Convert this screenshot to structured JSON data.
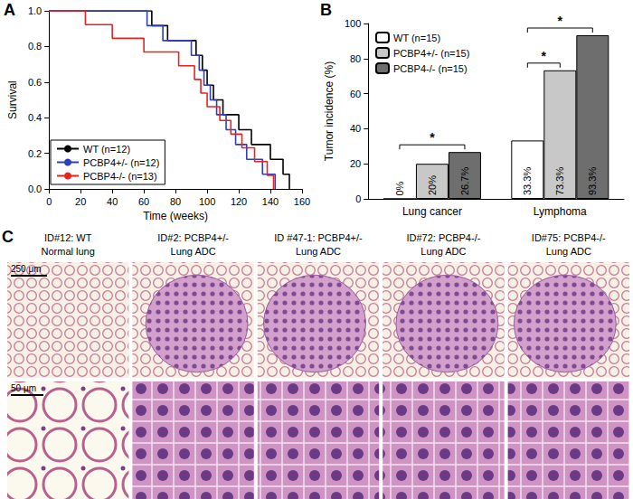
{
  "chart_data": [
    {
      "panel_label": "A",
      "type": "line",
      "line_style": "step",
      "x_label": "Time (weeks)",
      "y_label": "Survival",
      "xlim": [
        0,
        160
      ],
      "xticks": [
        0,
        20,
        40,
        60,
        80,
        100,
        120,
        140,
        160
      ],
      "ylim": [
        0,
        1
      ],
      "yticks": [
        {
          "value": 0,
          "label": "0.0"
        },
        {
          "value": 0.2,
          "label": "0.2"
        },
        {
          "value": 0.4,
          "label": "0.4"
        },
        {
          "value": 0.6,
          "label": "0.6"
        },
        {
          "value": 0.8,
          "label": "0.8"
        },
        {
          "value": 1,
          "label": "1.0"
        }
      ],
      "legend": "lower left",
      "series": [
        {
          "name": "WT (n=12)",
          "color": "#000000",
          "x": [
            0,
            65,
            75,
            93,
            97,
            100,
            104,
            110,
            120,
            128,
            140,
            148,
            152
          ],
          "values": [
            1,
            0.917,
            0.833,
            0.75,
            0.667,
            0.583,
            0.5,
            0.417,
            0.333,
            0.25,
            0.167,
            0.083,
            0
          ]
        },
        {
          "name": "PCBP4+/- (n=12)",
          "color": "#2e3fb8",
          "x": [
            0,
            62,
            72,
            90,
            95,
            98,
            102,
            106,
            112,
            118,
            125,
            135,
            143
          ],
          "values": [
            1,
            0.917,
            0.833,
            0.75,
            0.667,
            0.583,
            0.5,
            0.417,
            0.333,
            0.25,
            0.167,
            0.083,
            0
          ]
        },
        {
          "name": "PCBP4-/- (n=13)",
          "color": "#e8231f",
          "x": [
            0,
            23,
            40,
            60,
            82,
            92,
            96,
            100,
            108,
            115,
            122,
            130,
            138,
            142
          ],
          "values": [
            1,
            0.923,
            0.846,
            0.769,
            0.692,
            0.615,
            0.538,
            0.462,
            0.385,
            0.308,
            0.231,
            0.154,
            0.077,
            0
          ]
        }
      ]
    },
    {
      "panel_label": "B",
      "type": "bar",
      "y_label": "Tumor incidence (%)",
      "categories": [
        "Lung cancer",
        "Lymphoma"
      ],
      "ylim": [
        0,
        100
      ],
      "yticks": [
        0,
        20,
        40,
        60,
        80,
        100
      ],
      "legend": "upper left",
      "data_labels": true,
      "series": [
        {
          "name": "WT (n=15)",
          "color": "#ffffff",
          "values": [
            0,
            33.3
          ],
          "value_labels": [
            "0%",
            "33.3%"
          ]
        },
        {
          "name": "PCBP4+/- (n=15)",
          "color": "#c8c8c8",
          "values": [
            20,
            73.3
          ],
          "value_labels": [
            "20%",
            "73.3%"
          ]
        },
        {
          "name": "PCBP4-/- (n=15)",
          "color": "#6e6e6e",
          "values": [
            26.7,
            93.3
          ],
          "value_labels": [
            "26.7%",
            "93.3%"
          ]
        }
      ],
      "significance": [
        {
          "category": "Lung cancer",
          "from": "WT (n=15)",
          "to": "PCBP4-/- (n=15)",
          "label": "*"
        },
        {
          "category": "Lymphoma",
          "from": "WT (n=15)",
          "to": "PCBP4+/- (n=15)",
          "label": "*"
        },
        {
          "category": "Lymphoma",
          "from": "WT (n=15)",
          "to": "PCBP4-/- (n=15)",
          "label": "*"
        }
      ]
    }
  ],
  "panel_c": {
    "panel_label": "C",
    "scale_bars": {
      "top": "250 μm",
      "bottom": "50 μm"
    },
    "columns": [
      {
        "id": "ID#12: WT",
        "label": "Normal lung"
      },
      {
        "id": "ID#2: PCBP4+/-",
        "label": "Lung ADC"
      },
      {
        "id": "ID #47-1: PCBP4+/-",
        "label": "Lung ADC"
      },
      {
        "id": "ID#72: PCBP4-/-",
        "label": "Lung ADC"
      },
      {
        "id": "ID#75: PCBP4-/-",
        "label": "Lung ADC"
      }
    ]
  }
}
